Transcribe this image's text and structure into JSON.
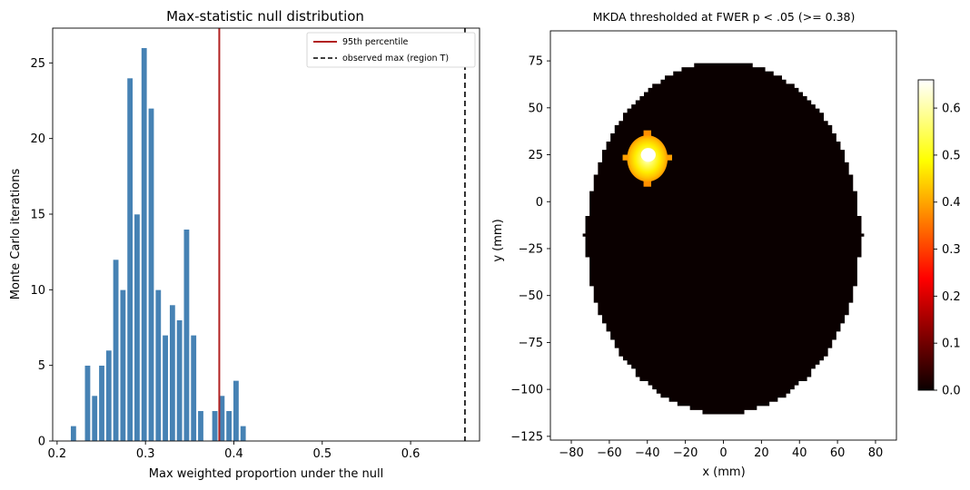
{
  "chart_data": [
    {
      "type": "bar",
      "title": "Max-statistic null distribution",
      "xlabel": "Max weighted proportion under the null",
      "ylabel": "Monte Carlo iterations",
      "xlim": [
        0.195,
        0.678
      ],
      "ylim": [
        0,
        27.3
      ],
      "xticks": [
        0.2,
        0.3,
        0.4,
        0.5,
        0.6
      ],
      "xtick_labels": [
        "0.2",
        "0.3",
        "0.4",
        "0.5",
        "0.6"
      ],
      "yticks": [
        0,
        5,
        10,
        15,
        20,
        25
      ],
      "ytick_labels": [
        "0",
        "5",
        "10",
        "15",
        "20",
        "25"
      ],
      "bin_width": 0.0066,
      "bar_color": "#4682b4",
      "bins": [
        {
          "x": 0.2185,
          "value": 1
        },
        {
          "x": 0.2345,
          "value": 5
        },
        {
          "x": 0.2425,
          "value": 3
        },
        {
          "x": 0.2505,
          "value": 5
        },
        {
          "x": 0.2585,
          "value": 6
        },
        {
          "x": 0.2665,
          "value": 12
        },
        {
          "x": 0.2745,
          "value": 10
        },
        {
          "x": 0.2825,
          "value": 24
        },
        {
          "x": 0.2905,
          "value": 15
        },
        {
          "x": 0.2985,
          "value": 26
        },
        {
          "x": 0.3065,
          "value": 22
        },
        {
          "x": 0.3145,
          "value": 10
        },
        {
          "x": 0.3225,
          "value": 7
        },
        {
          "x": 0.3305,
          "value": 9
        },
        {
          "x": 0.3385,
          "value": 8
        },
        {
          "x": 0.3465,
          "value": 14
        },
        {
          "x": 0.3545,
          "value": 7
        },
        {
          "x": 0.3625,
          "value": 2
        },
        {
          "x": 0.3785,
          "value": 2
        },
        {
          "x": 0.3865,
          "value": 3
        },
        {
          "x": 0.3945,
          "value": 2
        },
        {
          "x": 0.4025,
          "value": 4
        },
        {
          "x": 0.4105,
          "value": 1
        }
      ],
      "reference_lines": [
        {
          "label": "95th percentile",
          "x": 0.3835,
          "color": "#b22222",
          "style": "solid"
        },
        {
          "label": "observed max (region T)",
          "x": 0.6615,
          "color": "#000000",
          "style": "dashed"
        }
      ],
      "legend_position": "top-right"
    },
    {
      "type": "heatmap",
      "title": "MKDA thresholded at FWER p < .05 (>= 0.38)",
      "xlabel": "x (mm)",
      "ylabel": "y (mm)",
      "xlim": [
        -91,
        91
      ],
      "ylim": [
        -127,
        91
      ],
      "xticks": [
        -80,
        -60,
        -40,
        -20,
        0,
        20,
        40,
        60,
        80
      ],
      "xtick_labels": [
        "−80",
        "−60",
        "−40",
        "−20",
        "0",
        "20",
        "40",
        "60",
        "80"
      ],
      "yticks": [
        75,
        50,
        25,
        0,
        -25,
        -50,
        -75,
        -100,
        -125
      ],
      "ytick_labels": [
        "75",
        "50",
        "25",
        "0",
        "−25",
        "−50",
        "−75",
        "−100",
        "−125"
      ],
      "colormap": "hot",
      "colorbar_range": [
        0,
        0.66
      ],
      "colorbar_ticks": [
        0.0,
        0.1,
        0.2,
        0.3,
        0.4,
        0.5,
        0.6
      ],
      "colorbar_tick_labels": [
        "0.0",
        "0.1",
        "0.2",
        "0.3",
        "0.4",
        "0.5",
        "0.6"
      ],
      "brain_mask": {
        "center_x": 0,
        "center_y": -18,
        "radius_x": 72,
        "radius_y": 94,
        "value": 0.0
      },
      "blob": {
        "center_x": -40,
        "center_y": 23,
        "radius": 13,
        "peak_value": 0.66
      }
    }
  ]
}
